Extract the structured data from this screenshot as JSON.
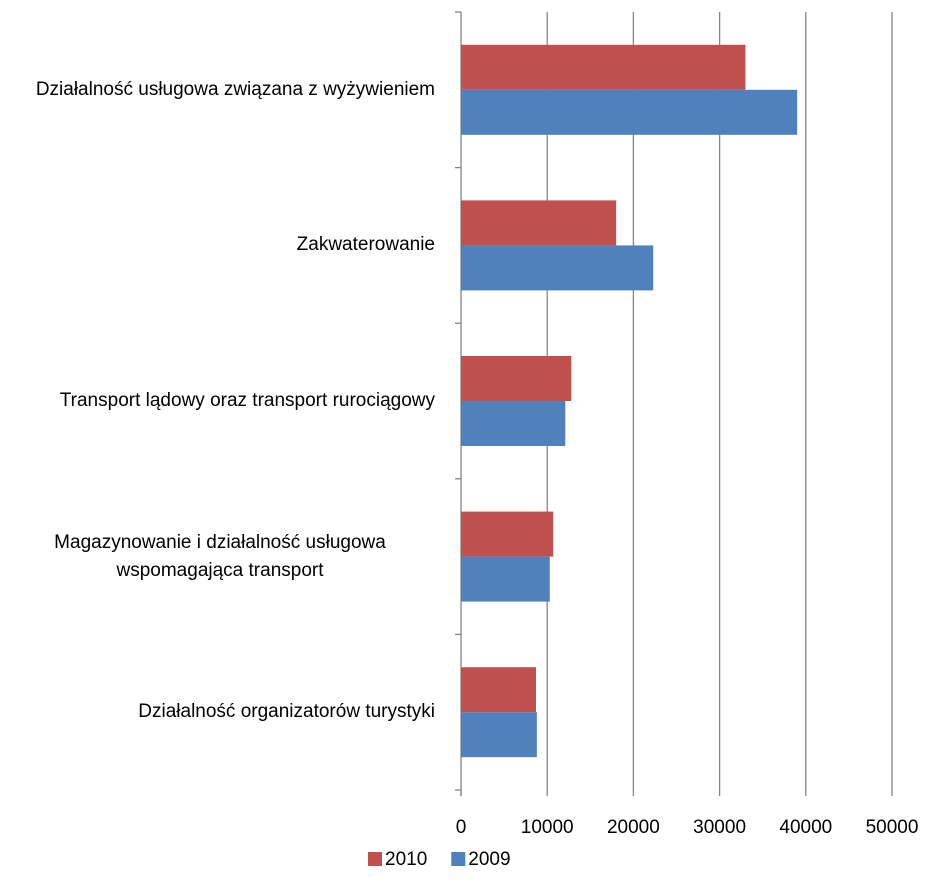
{
  "chart_data": {
    "type": "hbar",
    "categories": [
      "Działalność usługowa związana z wyżywieniem",
      "Zakwaterowanie",
      "Transport lądowy oraz transport rurociągowy",
      "Magazynowanie i działalność usługowa wspomagająca transport",
      "Działalność organizatorów turystyki"
    ],
    "series": [
      {
        "name": "2010",
        "color": "#c0504d",
        "values": [
          33000,
          18000,
          12800,
          10700,
          8700
        ]
      },
      {
        "name": "2009",
        "color": "#4f81bd",
        "values": [
          39000,
          22300,
          12100,
          10300,
          8800
        ]
      }
    ],
    "xlim": [
      0,
      50000
    ],
    "xticks": [
      0,
      10000,
      20000,
      30000,
      40000,
      50000
    ],
    "grid": true,
    "legend": "bottom"
  }
}
